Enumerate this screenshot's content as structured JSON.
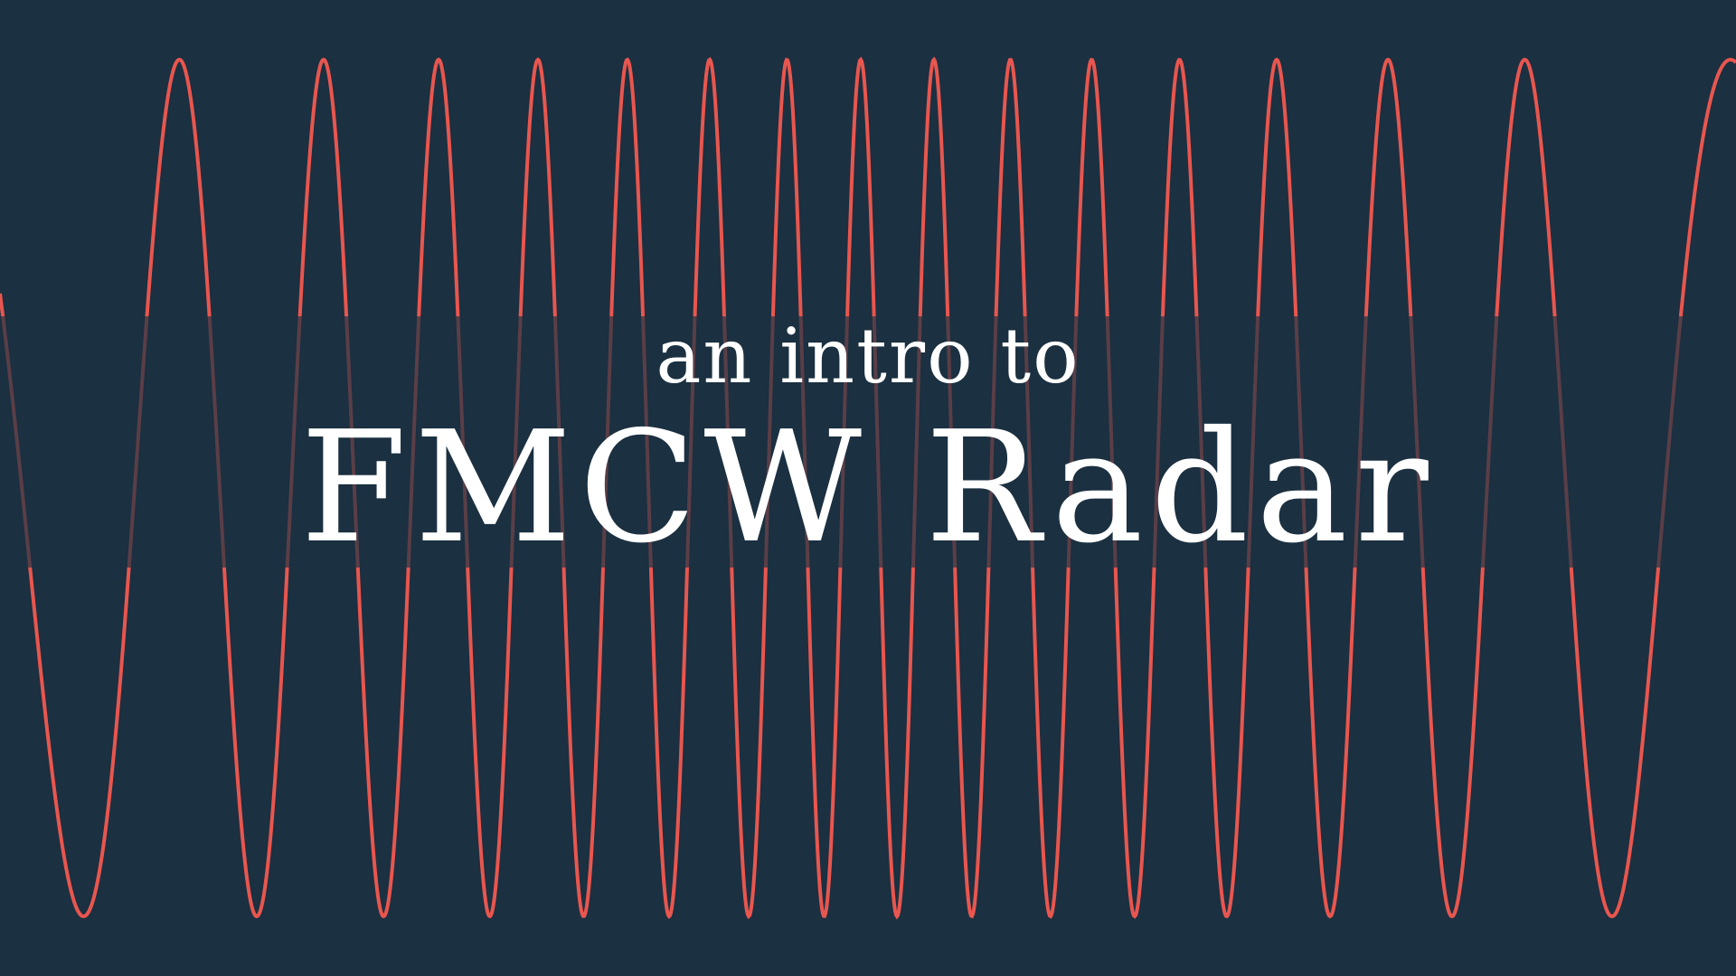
{
  "colors": {
    "background": "#1b3040",
    "wave": "#e8564f",
    "wave_behind_text": "#5a3e47",
    "text": "#ffffff"
  },
  "text": {
    "subtitle": "an intro to",
    "title": "FMCW Radar"
  },
  "wave": {
    "description_type": "chirp",
    "frequency_profile": "lowest at edges, highest at center (symmetric up-then-down chirp)"
  }
}
